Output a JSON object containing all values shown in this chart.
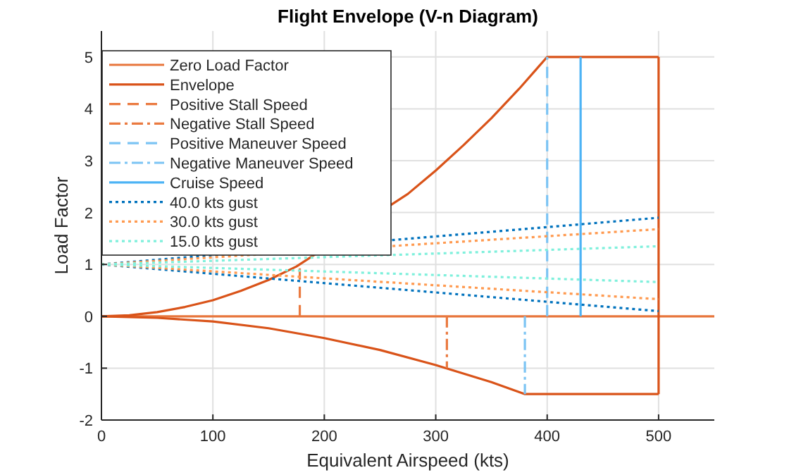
{
  "chart_data": {
    "type": "line",
    "title": "Flight Envelope (V-n Diagram)",
    "xlabel": "Equivalent Airspeed (kts)",
    "ylabel": "Load Factor",
    "xlim": [
      0,
      550
    ],
    "xticks": [
      0,
      100,
      200,
      300,
      400,
      500
    ],
    "ylim": [
      -2,
      5.5
    ],
    "yticks": [
      -2,
      -1,
      0,
      1,
      2,
      3,
      4,
      5
    ],
    "grid": true,
    "legend": "top left",
    "marker": "none",
    "series": [
      {
        "name": "Zero Load Factor",
        "color": "#e8763c",
        "line_style": "solid",
        "x": [
          0,
          550
        ],
        "values": [
          0,
          0
        ]
      },
      {
        "name": "Envelope",
        "color": "#d95319",
        "line_style": "solid",
        "x": [
          0,
          25,
          50,
          75,
          100,
          125,
          150,
          175,
          275,
          300,
          325,
          350,
          375,
          400,
          500
        ],
        "values": [
          0,
          0.02,
          0.08,
          0.18,
          0.31,
          0.49,
          0.7,
          0.96,
          2.36,
          2.81,
          3.3,
          3.82,
          4.39,
          5,
          5
        ]
      },
      {
        "color": "#d95319",
        "line_style": "solid",
        "x": [
          500,
          500
        ],
        "values": [
          5,
          -1.5
        ]
      },
      {
        "color": "#d95319",
        "line_style": "solid",
        "x": [
          0,
          50,
          100,
          150,
          200,
          250,
          300,
          350,
          380,
          500
        ],
        "values": [
          0,
          -0.03,
          -0.1,
          -0.23,
          -0.42,
          -0.65,
          -0.94,
          -1.27,
          -1.5,
          -1.5
        ]
      },
      {
        "name": "Positive Stall Speed",
        "color": "#ea7a40",
        "line_style": "dashed",
        "x": [
          178,
          178
        ],
        "values": [
          0,
          1
        ]
      },
      {
        "name": "Negative Stall Speed",
        "color": "#ea7a40",
        "line_style": "dashdot",
        "x": [
          310,
          310
        ],
        "values": [
          0,
          -1
        ]
      },
      {
        "name": "Positive Maneuver Speed",
        "color": "#7cc4f4",
        "line_style": "dashed",
        "x": [
          400,
          400
        ],
        "values": [
          0,
          5
        ]
      },
      {
        "name": "Negative Maneuver Speed",
        "color": "#7cc4f4",
        "line_style": "dashdot",
        "x": [
          380,
          380
        ],
        "values": [
          0,
          -1.5
        ]
      },
      {
        "name": "Cruise Speed",
        "color": "#4db3f5",
        "line_style": "solid",
        "x": [
          430,
          430
        ],
        "values": [
          0,
          5
        ]
      },
      {
        "name": "40.0 kts gust",
        "color": "#0072bd",
        "line_style": "dotted",
        "x": [
          0,
          500
        ],
        "values": [
          1,
          1.9
        ]
      },
      {
        "color": "#0072bd",
        "line_style": "dotted",
        "x": [
          0,
          500
        ],
        "values": [
          1,
          0.1
        ]
      },
      {
        "name": "30.0 kts gust",
        "color": "#ff9a50",
        "line_style": "dotted",
        "x": [
          0,
          500
        ],
        "values": [
          1,
          1.68
        ]
      },
      {
        "color": "#ff9a50",
        "line_style": "dotted",
        "x": [
          0,
          500
        ],
        "values": [
          1,
          0.33
        ]
      },
      {
        "name": "15.0 kts gust",
        "color": "#7ff0dc",
        "line_style": "dotted",
        "x": [
          0,
          500
        ],
        "values": [
          1,
          1.35
        ]
      },
      {
        "color": "#7ff0dc",
        "line_style": "dotted",
        "x": [
          0,
          500
        ],
        "values": [
          1,
          0.66
        ]
      }
    ]
  }
}
